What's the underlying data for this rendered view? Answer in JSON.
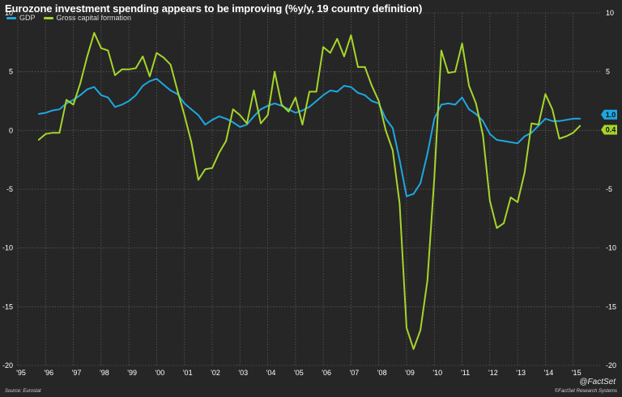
{
  "header": {
    "title": "Eurozone investment spending appears to be improving (%y/y, 19 country definition)"
  },
  "footer": {
    "source": "Source: Eurostat",
    "copyright": "©FactSet Research Systems",
    "brand": "@FactSet"
  },
  "colors": {
    "background": "#262626",
    "gridline": "#5a5a5a",
    "gdp": "#1ea7e1",
    "gcf": "#a6d52b"
  },
  "chart_data": {
    "type": "line",
    "title": "Eurozone investment spending appears to be improving (%y/y, 19 country definition)",
    "xlabel": "",
    "ylabel": "",
    "x_unit": "year",
    "xlim": [
      1995,
      2016
    ],
    "ylim": [
      -20,
      10
    ],
    "y_ticks": [
      10,
      5,
      0,
      -5,
      -10,
      -15,
      -20
    ],
    "x_ticks": [
      {
        "year": 1995,
        "label": "'95"
      },
      {
        "year": 1996,
        "label": "'96"
      },
      {
        "year": 1997,
        "label": "'97"
      },
      {
        "year": 1998,
        "label": "'98"
      },
      {
        "year": 1999,
        "label": "'99"
      },
      {
        "year": 2000,
        "label": "'00"
      },
      {
        "year": 2001,
        "label": "'01"
      },
      {
        "year": 2002,
        "label": "'02"
      },
      {
        "year": 2003,
        "label": "'03"
      },
      {
        "year": 2004,
        "label": "'04"
      },
      {
        "year": 2005,
        "label": "'05"
      },
      {
        "year": 2006,
        "label": "'06"
      },
      {
        "year": 2007,
        "label": "'07"
      },
      {
        "year": 2008,
        "label": "'08"
      },
      {
        "year": 2009,
        "label": "'09"
      },
      {
        "year": 2010,
        "label": "'10"
      },
      {
        "year": 2011,
        "label": "'11"
      },
      {
        "year": 2012,
        "label": "'12"
      },
      {
        "year": 2013,
        "label": "'13"
      },
      {
        "year": 2014,
        "label": "'14"
      },
      {
        "year": 2015,
        "label": "'15"
      }
    ],
    "grid": true,
    "legend_position": "top-left",
    "x": [
      1995.75,
      1996.0,
      1996.25,
      1996.5,
      1996.75,
      1997.0,
      1997.25,
      1997.5,
      1997.75,
      1998.0,
      1998.25,
      1998.5,
      1998.75,
      1999.0,
      1999.25,
      1999.5,
      1999.75,
      2000.0,
      2000.25,
      2000.5,
      2000.75,
      2001.0,
      2001.25,
      2001.5,
      2001.75,
      2002.0,
      2002.25,
      2002.5,
      2002.75,
      2003.0,
      2003.25,
      2003.5,
      2003.75,
      2004.0,
      2004.25,
      2004.5,
      2004.75,
      2005.0,
      2005.25,
      2005.5,
      2005.75,
      2006.0,
      2006.25,
      2006.5,
      2006.75,
      2007.0,
      2007.25,
      2007.5,
      2007.75,
      2008.0,
      2008.25,
      2008.5,
      2008.75,
      2009.0,
      2009.25,
      2009.5,
      2009.75,
      2010.0,
      2010.25,
      2010.5,
      2010.75,
      2011.0,
      2011.25,
      2011.5,
      2011.75,
      2012.0,
      2012.25,
      2012.5,
      2012.75,
      2013.0,
      2013.25,
      2013.5,
      2013.75,
      2014.0,
      2014.25,
      2014.5,
      2014.75,
      2015.0,
      2015.25
    ],
    "series": [
      {
        "name": "GDP",
        "color": "#1ea7e1",
        "end_label": "1.0",
        "values": [
          1.4,
          1.5,
          1.7,
          1.8,
          2.3,
          2.6,
          3.0,
          3.5,
          3.7,
          3.0,
          2.8,
          2.0,
          2.2,
          2.5,
          3.0,
          3.8,
          4.2,
          4.4,
          3.9,
          3.4,
          3.1,
          2.3,
          1.8,
          1.3,
          0.5,
          0.9,
          1.2,
          1.0,
          0.7,
          0.3,
          0.5,
          1.2,
          1.8,
          2.1,
          2.3,
          2.1,
          1.8,
          1.5,
          1.7,
          2.0,
          2.5,
          3.0,
          3.4,
          3.3,
          3.8,
          3.7,
          3.2,
          3.0,
          2.5,
          2.3,
          1.0,
          0.2,
          -2.5,
          -5.6,
          -5.4,
          -4.5,
          -2.0,
          1.0,
          2.2,
          2.3,
          2.2,
          2.8,
          1.8,
          1.4,
          0.8,
          -0.3,
          -0.8,
          -0.9,
          -1.0,
          -1.1,
          -0.5,
          -0.2,
          0.4,
          1.0,
          0.8,
          0.8,
          0.9,
          1.0,
          1.0
        ]
      },
      {
        "name": "Gross capital formation",
        "color": "#a6d52b",
        "end_label": "0.4",
        "values": [
          -0.8,
          -0.3,
          -0.2,
          -0.2,
          2.6,
          2.2,
          4.0,
          6.3,
          8.3,
          7.0,
          6.8,
          4.7,
          5.2,
          5.2,
          5.3,
          6.3,
          4.6,
          6.6,
          6.2,
          5.6,
          3.4,
          1.3,
          -1.0,
          -4.2,
          -3.3,
          -3.2,
          -1.9,
          -0.9,
          1.8,
          1.3,
          0.6,
          3.4,
          0.6,
          1.3,
          5.0,
          2.2,
          1.6,
          2.8,
          0.5,
          3.3,
          3.3,
          7.1,
          6.6,
          7.8,
          6.3,
          8.1,
          5.4,
          5.4,
          3.8,
          2.5,
          0.0,
          -1.7,
          -6.2,
          -16.8,
          -18.6,
          -17.0,
          -12.8,
          -4.0,
          6.8,
          4.9,
          5.0,
          7.4,
          3.8,
          2.3,
          -0.4,
          -6.0,
          -8.3,
          -7.9,
          -5.7,
          -6.1,
          -3.6,
          0.6,
          0.5,
          3.1,
          1.8,
          -0.7,
          -0.5,
          -0.2,
          0.4
        ]
      }
    ]
  }
}
